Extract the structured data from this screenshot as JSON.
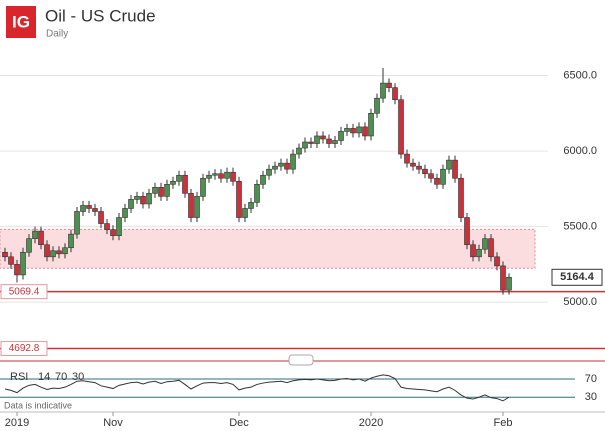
{
  "logo": "IG",
  "footnote": "Data is indicative",
  "chart_data": [
    {
      "type": "candlestick",
      "title": "Oil - US Crude",
      "subtitle": "Daily",
      "categories": [
        null,
        null,
        null,
        null,
        null,
        null,
        null,
        null,
        null,
        null,
        null,
        null,
        null,
        null,
        null,
        null,
        null,
        null,
        null,
        null,
        null,
        null,
        null,
        null,
        null,
        null,
        null,
        null,
        null,
        null,
        null,
        null,
        null,
        null,
        null,
        null,
        null,
        null,
        null,
        null,
        null,
        null,
        null,
        null,
        null,
        null,
        null,
        null,
        null,
        null,
        null,
        null,
        null,
        null,
        null,
        null,
        null,
        null,
        null,
        null,
        null,
        null,
        null,
        null,
        null,
        null,
        null,
        null,
        null,
        null,
        null,
        null,
        null,
        null,
        null,
        null,
        null,
        null,
        null,
        null,
        null,
        null,
        null,
        null,
        null
      ],
      "open": [
        5330,
        5300,
        5250,
        5180,
        5330,
        5420,
        5470,
        5380,
        5300,
        5340,
        5320,
        5360,
        5450,
        5600,
        5640,
        5620,
        5600,
        5520,
        5480,
        5440,
        5560,
        5620,
        5680,
        5700,
        5650,
        5720,
        5760,
        5700,
        5780,
        5800,
        5840,
        5720,
        5560,
        5700,
        5820,
        5840,
        5850,
        5820,
        5860,
        5800,
        5560,
        5620,
        5660,
        5780,
        5840,
        5880,
        5900,
        5920,
        5880,
        5980,
        6020,
        6060,
        6050,
        6100,
        6080,
        6050,
        6070,
        6130,
        6150,
        6120,
        6160,
        6100,
        6250,
        6350,
        6450,
        6420,
        6340,
        5980,
        5920,
        5900,
        5880,
        5850,
        5820,
        5780,
        5880,
        5940,
        5820,
        5560,
        5380,
        5300,
        5350,
        5420,
        5300,
        5240,
        5080
      ],
      "high": [
        5360,
        5330,
        5280,
        5360,
        5450,
        5500,
        5500,
        5410,
        5370,
        5370,
        5390,
        5480,
        5630,
        5670,
        5670,
        5650,
        5630,
        5550,
        5510,
        5590,
        5650,
        5710,
        5730,
        5730,
        5750,
        5790,
        5790,
        5810,
        5830,
        5870,
        5870,
        5750,
        5730,
        5850,
        5870,
        5880,
        5880,
        5890,
        5890,
        5830,
        5650,
        5690,
        5810,
        5870,
        5910,
        5930,
        5950,
        5950,
        6010,
        6050,
        6090,
        6090,
        6130,
        6130,
        6110,
        6100,
        6160,
        6180,
        6180,
        6190,
        6190,
        6280,
        6380,
        6550,
        6480,
        6450,
        6370,
        6010,
        5950,
        5930,
        5910,
        5880,
        5850,
        5910,
        5970,
        5970,
        5850,
        5590,
        5410,
        5380,
        5450,
        5450,
        5330,
        5270,
        5190
      ],
      "low": [
        5270,
        5220,
        5130,
        5150,
        5300,
        5390,
        5350,
        5270,
        5270,
        5290,
        5290,
        5330,
        5420,
        5570,
        5590,
        5570,
        5490,
        5450,
        5410,
        5410,
        5530,
        5590,
        5650,
        5620,
        5620,
        5690,
        5670,
        5670,
        5750,
        5770,
        5690,
        5530,
        5530,
        5670,
        5790,
        5810,
        5790,
        5790,
        5770,
        5530,
        5530,
        5590,
        5630,
        5750,
        5810,
        5850,
        5870,
        5850,
        5850,
        5950,
        5990,
        6020,
        6020,
        6050,
        6020,
        6020,
        6040,
        6100,
        6090,
        6090,
        6070,
        6070,
        6220,
        6320,
        6390,
        6310,
        5950,
        5890,
        5870,
        5850,
        5820,
        5790,
        5750,
        5750,
        5850,
        5790,
        5530,
        5350,
        5270,
        5270,
        5320,
        5270,
        5210,
        5050,
        5050
      ],
      "close": [
        5300,
        5250,
        5180,
        5330,
        5420,
        5470,
        5380,
        5300,
        5340,
        5320,
        5360,
        5450,
        5600,
        5640,
        5620,
        5600,
        5520,
        5480,
        5440,
        5560,
        5620,
        5680,
        5700,
        5650,
        5720,
        5760,
        5700,
        5780,
        5800,
        5840,
        5720,
        5560,
        5700,
        5820,
        5840,
        5850,
        5820,
        5860,
        5800,
        5560,
        5620,
        5660,
        5780,
        5840,
        5880,
        5900,
        5920,
        5880,
        5980,
        6020,
        6060,
        6050,
        6100,
        6080,
        6050,
        6070,
        6130,
        6150,
        6120,
        6160,
        6100,
        6250,
        6350,
        6450,
        6420,
        6340,
        5980,
        5920,
        5900,
        5880,
        5850,
        5820,
        5780,
        5880,
        5940,
        5820,
        5560,
        5380,
        5300,
        5350,
        5420,
        5300,
        5240,
        5080,
        5164.4
      ],
      "up_color": "#4f8f4f",
      "down_color": "#c9323a",
      "ylim": [
        4650,
        7000
      ],
      "yticks": [
        {
          "value": 5000,
          "label": "5000.0"
        },
        {
          "value": 5500,
          "label": "5500.0"
        },
        {
          "value": 6000,
          "label": "6000.0"
        },
        {
          "value": 6500,
          "label": "6500.0"
        }
      ],
      "xticks": [
        {
          "value": 2,
          "label": "2019"
        },
        {
          "value": 18,
          "label": "Nov"
        },
        {
          "value": 39,
          "label": "Dec"
        },
        {
          "value": 61,
          "label": "2020"
        },
        {
          "value": 83,
          "label": "Feb"
        }
      ],
      "levels": [
        5069.4,
        4692.8
      ],
      "zone": [
        5224,
        5482
      ],
      "grid": true
    },
    {
      "type": "line",
      "name": "RSI",
      "params": [
        14,
        70,
        30
      ],
      "color": "#333333",
      "values": [
        48,
        45,
        40,
        50,
        56,
        58,
        52,
        47,
        50,
        49,
        52,
        58,
        65,
        66,
        64,
        62,
        55,
        52,
        49,
        56,
        59,
        62,
        63,
        59,
        63,
        65,
        60,
        64,
        65,
        67,
        58,
        48,
        55,
        61,
        62,
        62,
        60,
        62,
        58,
        46,
        50,
        52,
        58,
        61,
        63,
        64,
        65,
        62,
        66,
        68,
        69,
        68,
        70,
        68,
        66,
        67,
        70,
        71,
        68,
        70,
        65,
        72,
        76,
        79,
        77,
        71,
        52,
        49,
        48,
        47,
        46,
        44,
        42,
        48,
        52,
        45,
        35,
        28,
        26,
        30,
        35,
        29,
        27,
        22,
        30
      ],
      "ylim": [
        2,
        94
      ],
      "yticks": [
        70,
        30
      ]
    }
  ]
}
